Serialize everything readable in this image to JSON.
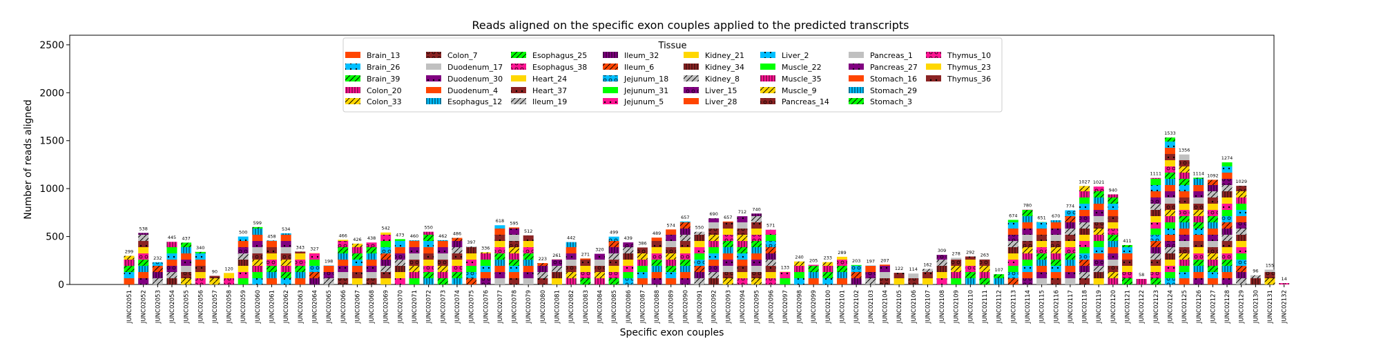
{
  "chart_data": {
    "type": "bar",
    "stacked": true,
    "title": "Reads aligned on the specific exon couples applied to the predicted transcripts",
    "xlabel": "Specific exon couples",
    "ylabel": "Number of reads aligned",
    "ylim": [
      0,
      2600
    ],
    "yticks": [
      0,
      500,
      1000,
      1500,
      2000,
      2500
    ],
    "grid": false,
    "legend": {
      "title": "Tissue",
      "placement": "top-center",
      "entries": [
        {
          "name": "Brain_13",
          "color": "#ff4500",
          "hatch": "none"
        },
        {
          "name": "Brain_26",
          "color": "#00bfff",
          "hatch": "dots"
        },
        {
          "name": "Brain_39",
          "color": "#00ff00",
          "hatch": "slash"
        },
        {
          "name": "Colon_20",
          "color": "#ff1493",
          "hatch": "bars"
        },
        {
          "name": "Colon_33",
          "color": "#ffd700",
          "hatch": "slash"
        },
        {
          "name": "Colon_7",
          "color": "#8b2323",
          "hatch": "circles"
        },
        {
          "name": "Duodenum_17",
          "color": "#c0c0c0",
          "hatch": "none"
        },
        {
          "name": "Duodenum_30",
          "color": "#800080",
          "hatch": "dots"
        },
        {
          "name": "Duodenum_4",
          "color": "#ff4500",
          "hatch": "none"
        },
        {
          "name": "Esophagus_12",
          "color": "#00bfff",
          "hatch": "bars"
        },
        {
          "name": "Esophagus_25",
          "color": "#00ff00",
          "hatch": "slash"
        },
        {
          "name": "Esophagus_38",
          "color": "#ff1493",
          "hatch": "circles"
        },
        {
          "name": "Heart_24",
          "color": "#ffd700",
          "hatch": "none"
        },
        {
          "name": "Heart_37",
          "color": "#8b2323",
          "hatch": "dots"
        },
        {
          "name": "Ileum_19",
          "color": "#c0c0c0",
          "hatch": "slash"
        },
        {
          "name": "Ileum_32",
          "color": "#800080",
          "hatch": "bars"
        },
        {
          "name": "Ileum_6",
          "color": "#ff4500",
          "hatch": "slash"
        },
        {
          "name": "Jejunum_18",
          "color": "#00bfff",
          "hatch": "circles"
        },
        {
          "name": "Jejunum_31",
          "color": "#00ff00",
          "hatch": "none"
        },
        {
          "name": "Jejunum_5",
          "color": "#ff1493",
          "hatch": "dots"
        },
        {
          "name": "Kidney_21",
          "color": "#ffd700",
          "hatch": "none"
        },
        {
          "name": "Kidney_34",
          "color": "#8b2323",
          "hatch": "bars"
        },
        {
          "name": "Kidney_8",
          "color": "#c0c0c0",
          "hatch": "slash"
        },
        {
          "name": "Liver_15",
          "color": "#800080",
          "hatch": "circles"
        },
        {
          "name": "Liver_28",
          "color": "#ff4500",
          "hatch": "none"
        },
        {
          "name": "Liver_2",
          "color": "#00bfff",
          "hatch": "dots"
        },
        {
          "name": "Muscle_22",
          "color": "#00ff00",
          "hatch": "none"
        },
        {
          "name": "Muscle_35",
          "color": "#ff1493",
          "hatch": "bars"
        },
        {
          "name": "Muscle_9",
          "color": "#ffd700",
          "hatch": "slash"
        },
        {
          "name": "Pancreas_14",
          "color": "#8b2323",
          "hatch": "circles"
        },
        {
          "name": "Pancreas_1",
          "color": "#c0c0c0",
          "hatch": "none"
        },
        {
          "name": "Pancreas_27",
          "color": "#800080",
          "hatch": "dots"
        },
        {
          "name": "Stomach_16",
          "color": "#ff4500",
          "hatch": "none"
        },
        {
          "name": "Stomach_29",
          "color": "#00bfff",
          "hatch": "bars"
        },
        {
          "name": "Stomach_3",
          "color": "#00ff00",
          "hatch": "slash"
        },
        {
          "name": "Thymus_10",
          "color": "#ff1493",
          "hatch": "circles"
        },
        {
          "name": "Thymus_23",
          "color": "#ffd700",
          "hatch": "none"
        },
        {
          "name": "Thymus_36",
          "color": "#8b2323",
          "hatch": "dots"
        }
      ]
    },
    "categories": [
      "JUNC02051",
      "JUNC02052",
      "JUNC02053",
      "JUNC02054",
      "JUNC02055",
      "JUNC02056",
      "JUNC02057",
      "JUNC02058",
      "JUNC02059",
      "JUNC02060",
      "JUNC02061",
      "JUNC02062",
      "JUNC02063",
      "JUNC02064",
      "JUNC02065",
      "JUNC02066",
      "JUNC02067",
      "JUNC02068",
      "JUNC02069",
      "JUNC02070",
      "JUNC02071",
      "JUNC02072",
      "JUNC02073",
      "JUNC02074",
      "JUNC02075",
      "JUNC02076",
      "JUNC02077",
      "JUNC02078",
      "JUNC02079",
      "JUNC02080",
      "JUNC02081",
      "JUNC02082",
      "JUNC02083",
      "JUNC02084",
      "JUNC02085",
      "JUNC02086",
      "JUNC02087",
      "JUNC02088",
      "JUNC02089",
      "JUNC02090",
      "JUNC02091",
      "JUNC02092",
      "JUNC02093",
      "JUNC02094",
      "JUNC02095",
      "JUNC02096",
      "JUNC02097",
      "JUNC02098",
      "JUNC02099",
      "JUNC02100",
      "JUNC02101",
      "JUNC02102",
      "JUNC02103",
      "JUNC02104",
      "JUNC02105",
      "JUNC02106",
      "JUNC02107",
      "JUNC02108",
      "JUNC02109",
      "JUNC02110",
      "JUNC02111",
      "JUNC02112",
      "JUNC02113",
      "JUNC02114",
      "JUNC02115",
      "JUNC02116",
      "JUNC02117",
      "JUNC02118",
      "JUNC02119",
      "JUNC02120",
      "JUNC02121",
      "JUNC02122",
      "JUNC02123",
      "JUNC02124",
      "JUNC02125",
      "JUNC02126",
      "JUNC02127",
      "JUNC02128",
      "JUNC02129",
      "JUNC02130",
      "JUNC02131",
      "JUNC02132"
    ],
    "totals": [
      299,
      538,
      232,
      445,
      437,
      340,
      90,
      120,
      500,
      599,
      458,
      534,
      343,
      327,
      198,
      466,
      426,
      438,
      542,
      473,
      460,
      550,
      462,
      486,
      397,
      336,
      618,
      595,
      512,
      223,
      261,
      442,
      271,
      320,
      499,
      439,
      386,
      489,
      574,
      657,
      550,
      690,
      657,
      712,
      740,
      571,
      133,
      240,
      205,
      233,
      289,
      203,
      197,
      207,
      122,
      114,
      162,
      309,
      278,
      292,
      263,
      107,
      674,
      780,
      651,
      670,
      774,
      1027,
      1021,
      940,
      411,
      58,
      1111,
      1533,
      1356,
      1114,
      1092,
      1274,
      1029,
      96,
      155,
      14
    ]
  }
}
